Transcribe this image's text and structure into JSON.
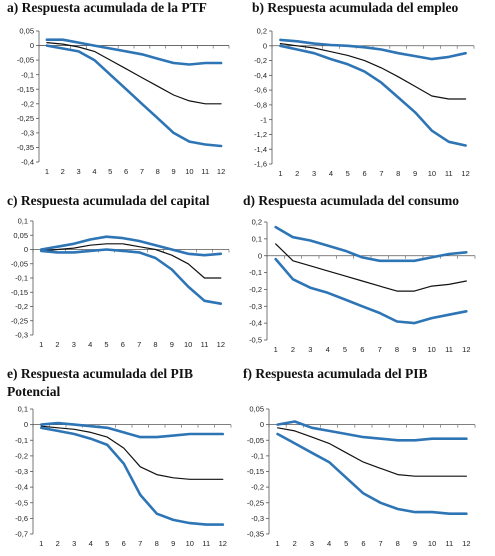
{
  "colors": {
    "band": "#2e75b6",
    "point": "#111111",
    "axis": "#555555"
  },
  "chart_data": [
    {
      "type": "line",
      "title": "a) Respuesta acumulada de la PTF",
      "x": [
        1,
        2,
        3,
        4,
        5,
        6,
        7,
        8,
        9,
        10,
        11,
        12
      ],
      "xticks": [
        "1",
        "2",
        "3",
        "4",
        "5",
        "6",
        "7",
        "8",
        "9",
        "10",
        "11",
        "12"
      ],
      "ylim": [
        -0.4,
        0.05
      ],
      "yticks": [
        0.05,
        0,
        -0.05,
        -0.1,
        -0.15,
        -0.2,
        -0.25,
        -0.3,
        -0.35,
        -0.4
      ],
      "ytick_labels": [
        "0,05",
        "0",
        "-0,05",
        "-0,1",
        "-0,15",
        "-0,2",
        "-0,25",
        "-0,3",
        "-0,35",
        "-0,4"
      ],
      "series": [
        {
          "role": "upper",
          "values": [
            0.02,
            0.02,
            0.01,
            0.0,
            -0.01,
            -0.02,
            -0.03,
            -0.045,
            -0.06,
            -0.065,
            -0.06,
            -0.06
          ]
        },
        {
          "role": "point",
          "values": [
            0.01,
            0.005,
            -0.005,
            -0.02,
            -0.05,
            -0.08,
            -0.11,
            -0.14,
            -0.17,
            -0.19,
            -0.2,
            -0.2
          ]
        },
        {
          "role": "lower",
          "values": [
            0.0,
            -0.01,
            -0.02,
            -0.05,
            -0.1,
            -0.15,
            -0.2,
            -0.25,
            -0.3,
            -0.33,
            -0.34,
            -0.345
          ]
        }
      ]
    },
    {
      "type": "line",
      "title": "b) Respuesta acumulada del empleo",
      "x": [
        1,
        2,
        3,
        4,
        5,
        6,
        7,
        8,
        9,
        10,
        11,
        12
      ],
      "xticks": [
        "1",
        "2",
        "3",
        "4",
        "5",
        "6",
        "7",
        "8",
        "9",
        "10",
        "11",
        "12"
      ],
      "ylim": [
        -1.6,
        0.2
      ],
      "yticks": [
        0.2,
        0,
        -0.2,
        -0.4,
        -0.6,
        -0.8,
        -1,
        -1.2,
        -1.4,
        -1.6
      ],
      "ytick_labels": [
        "0,2",
        "0",
        "-0,2",
        "-0,4",
        "-0,6",
        "-0,8",
        "-1",
        "-1,2",
        "-1,4",
        "-1,6"
      ],
      "series": [
        {
          "role": "upper",
          "values": [
            0.08,
            0.06,
            0.03,
            0.01,
            0.0,
            -0.02,
            -0.05,
            -0.1,
            -0.14,
            -0.18,
            -0.15,
            -0.1
          ]
        },
        {
          "role": "point",
          "values": [
            0.03,
            0.0,
            -0.03,
            -0.08,
            -0.13,
            -0.2,
            -0.3,
            -0.42,
            -0.55,
            -0.68,
            -0.72,
            -0.72
          ]
        },
        {
          "role": "lower",
          "values": [
            0.0,
            -0.05,
            -0.1,
            -0.18,
            -0.25,
            -0.35,
            -0.5,
            -0.7,
            -0.9,
            -1.15,
            -1.3,
            -1.35
          ]
        }
      ]
    },
    {
      "type": "line",
      "title": "c) Respuesta acumulada del capital",
      "x": [
        1,
        2,
        3,
        4,
        5,
        6,
        7,
        8,
        9,
        10,
        11,
        12
      ],
      "xticks": [
        "1",
        "2",
        "3",
        "4",
        "5",
        "6",
        "7",
        "8",
        "9",
        "10",
        "11",
        "12"
      ],
      "ylim": [
        -0.3,
        0.1
      ],
      "yticks": [
        0.1,
        0.05,
        0,
        -0.05,
        -0.1,
        -0.15,
        -0.2,
        -0.25,
        -0.3
      ],
      "ytick_labels": [
        "0,1",
        "0,05",
        "0",
        "-0,05",
        "-0,1",
        "-0,15",
        "-0,2",
        "-0,25",
        "-0,3"
      ],
      "series": [
        {
          "role": "upper",
          "values": [
            0.0,
            0.01,
            0.02,
            0.035,
            0.045,
            0.04,
            0.03,
            0.015,
            0.0,
            -0.015,
            -0.02,
            -0.015
          ]
        },
        {
          "role": "point",
          "values": [
            -0.005,
            0.0,
            0.005,
            0.015,
            0.02,
            0.02,
            0.01,
            0.0,
            -0.02,
            -0.05,
            -0.1,
            -0.1
          ]
        },
        {
          "role": "lower",
          "values": [
            -0.005,
            -0.01,
            -0.01,
            -0.005,
            0.0,
            -0.005,
            -0.01,
            -0.03,
            -0.07,
            -0.13,
            -0.18,
            -0.19
          ]
        }
      ]
    },
    {
      "type": "line",
      "title": "d) Respuesta acumulada del  consumo",
      "x": [
        1,
        2,
        3,
        4,
        5,
        6,
        7,
        8,
        9,
        10,
        11,
        12
      ],
      "xticks": [
        "1",
        "2",
        "3",
        "4",
        "5",
        "6",
        "7",
        "8",
        "9",
        "10",
        "11",
        "12"
      ],
      "ylim": [
        -0.5,
        0.2
      ],
      "yticks": [
        0.2,
        0.1,
        0,
        -0.1,
        -0.2,
        -0.3,
        -0.4,
        -0.5
      ],
      "ytick_labels": [
        "0,2",
        "0,1",
        "0",
        "-0,1",
        "-0,2",
        "-0,3",
        "-0,4",
        "-0,5"
      ],
      "series": [
        {
          "role": "upper",
          "values": [
            0.17,
            0.11,
            0.09,
            0.06,
            0.03,
            -0.01,
            -0.03,
            -0.03,
            -0.03,
            -0.01,
            0.01,
            0.02
          ]
        },
        {
          "role": "point",
          "values": [
            0.07,
            -0.03,
            -0.06,
            -0.09,
            -0.12,
            -0.15,
            -0.18,
            -0.21,
            -0.21,
            -0.18,
            -0.17,
            -0.15
          ]
        },
        {
          "role": "lower",
          "values": [
            -0.02,
            -0.14,
            -0.19,
            -0.22,
            -0.26,
            -0.3,
            -0.34,
            -0.39,
            -0.4,
            -0.37,
            -0.35,
            -0.33
          ]
        }
      ]
    },
    {
      "type": "line",
      "title": "e) Respuesta acumulada del PIB\nPotencial",
      "title_lines": [
        "e) Respuesta acumulada del PIB",
        "Potencial"
      ],
      "x": [
        1,
        2,
        3,
        4,
        5,
        6,
        7,
        8,
        9,
        10,
        11,
        12
      ],
      "xticks": [
        "1",
        "2",
        "3",
        "4",
        "5",
        "6",
        "7",
        "8",
        "9",
        "10",
        "11",
        "12"
      ],
      "ylim": [
        -0.7,
        0.1
      ],
      "yticks": [
        0.1,
        0,
        -0.1,
        -0.2,
        -0.3,
        -0.4,
        -0.5,
        -0.6,
        -0.7
      ],
      "ytick_labels": [
        "0,1",
        "0",
        "-0,1",
        "-0,2",
        "-0,3",
        "-0,4",
        "-0,5",
        "-0,6",
        "-0,7"
      ],
      "series": [
        {
          "role": "upper",
          "values": [
            0.0,
            0.01,
            0.0,
            -0.01,
            -0.02,
            -0.05,
            -0.08,
            -0.08,
            -0.07,
            -0.06,
            -0.06,
            -0.06
          ]
        },
        {
          "role": "point",
          "values": [
            -0.01,
            -0.02,
            -0.03,
            -0.05,
            -0.08,
            -0.15,
            -0.27,
            -0.32,
            -0.34,
            -0.35,
            -0.35,
            -0.35
          ]
        },
        {
          "role": "lower",
          "values": [
            -0.02,
            -0.04,
            -0.06,
            -0.09,
            -0.13,
            -0.25,
            -0.45,
            -0.57,
            -0.61,
            -0.63,
            -0.64,
            -0.64
          ]
        }
      ]
    },
    {
      "type": "line",
      "title": "f) Respuesta acumulada del  PIB",
      "x": [
        1,
        2,
        3,
        4,
        5,
        6,
        7,
        8,
        9,
        10,
        11,
        12
      ],
      "xticks": [
        "1",
        "2",
        "3",
        "4",
        "5",
        "6",
        "7",
        "8",
        "9",
        "10",
        "11",
        "12"
      ],
      "ylim": [
        -0.35,
        0.05
      ],
      "yticks": [
        0.05,
        0,
        -0.05,
        -0.1,
        -0.15,
        -0.2,
        -0.25,
        -0.3,
        -0.35
      ],
      "ytick_labels": [
        "0,05",
        "0",
        "-0,05",
        "-0,1",
        "-0,15",
        "-0,2",
        "-0,25",
        "-0,3",
        "-0,35"
      ],
      "series": [
        {
          "role": "upper",
          "values": [
            0.0,
            0.01,
            -0.01,
            -0.02,
            -0.03,
            -0.04,
            -0.045,
            -0.05,
            -0.05,
            -0.045,
            -0.045,
            -0.045
          ]
        },
        {
          "role": "point",
          "values": [
            -0.01,
            -0.02,
            -0.04,
            -0.06,
            -0.09,
            -0.12,
            -0.14,
            -0.16,
            -0.165,
            -0.165,
            -0.165,
            -0.165
          ]
        },
        {
          "role": "lower",
          "values": [
            -0.03,
            -0.06,
            -0.09,
            -0.12,
            -0.17,
            -0.22,
            -0.25,
            -0.27,
            -0.28,
            -0.28,
            -0.285,
            -0.285
          ]
        }
      ]
    }
  ]
}
